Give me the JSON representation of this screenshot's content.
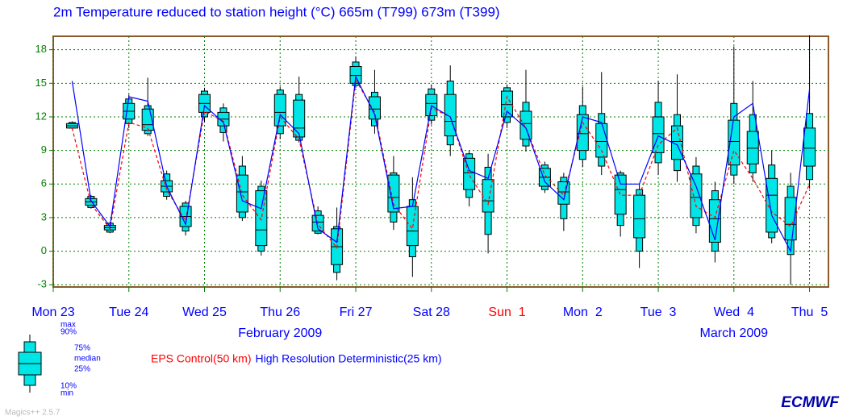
{
  "chart_data": {
    "type": "boxplot",
    "title": "2m Temperature reduced to station height (°C) 665m (T799) 673m (T399)",
    "xlim": [
      0,
      246
    ],
    "xticks": [
      {
        "value": 0,
        "label": "Mon 23"
      },
      {
        "value": 24,
        "label": "Tue 24"
      },
      {
        "value": 48,
        "label": "Wed 25"
      },
      {
        "value": 72,
        "label": "Thu 26"
      },
      {
        "value": 96,
        "label": "Fri 27"
      },
      {
        "value": 120,
        "label": "Sat 28"
      },
      {
        "value": 144,
        "label": "Sun  1",
        "color": "#ff0000"
      },
      {
        "value": 168,
        "label": "Mon  2"
      },
      {
        "value": 192,
        "label": "Tue  3"
      },
      {
        "value": 216,
        "label": "Wed  4"
      },
      {
        "value": 240,
        "label": "Thu  5"
      }
    ],
    "month_labels": [
      {
        "value": 72,
        "label": "February 2009"
      },
      {
        "value": 216,
        "label": "March 2009"
      }
    ],
    "ylim": [
      -3.2,
      19.2
    ],
    "yticks": [
      -3,
      0,
      3,
      6,
      9,
      12,
      15,
      18
    ],
    "grid": true,
    "box_color": "#00e5e5",
    "x": [
      6,
      12,
      18,
      24,
      30,
      36,
      42,
      48,
      54,
      60,
      66,
      72,
      78,
      84,
      90,
      96,
      102,
      108,
      114,
      120,
      126,
      132,
      138,
      144,
      150,
      156,
      162,
      168,
      174,
      180,
      186,
      192,
      198,
      204,
      210,
      216,
      222,
      228,
      234,
      240
    ],
    "boxes": {
      "min": [
        10.9,
        3.8,
        1.6,
        11,
        10.3,
        4.6,
        1.4,
        11.5,
        9.8,
        2.7,
        -0.4,
        10,
        9.7,
        1.5,
        -2.6,
        14.6,
        10.5,
        1.9,
        -2.3,
        11.3,
        8.5,
        4,
        -0.2,
        11,
        8.9,
        5.2,
        1.8,
        7.5,
        6.8,
        1.3,
        -1.5,
        6.8,
        6.2,
        1.6,
        -1,
        6,
        6.2,
        0.7,
        -3,
        5.6
      ],
      "p10": [
        11,
        3.9,
        1.7,
        11.4,
        10.5,
        4.9,
        1.8,
        12,
        10.6,
        3,
        0,
        10.5,
        9.9,
        1.6,
        -1.9,
        14.8,
        11.2,
        2.6,
        -0.5,
        11.7,
        9.5,
        4.8,
        1.5,
        11.5,
        9.4,
        5.5,
        2.9,
        8.2,
        7.6,
        2.3,
        0,
        7.9,
        7.2,
        2.3,
        0,
        6.8,
        7,
        1.2,
        -0.3,
        6.4
      ],
      "p25": [
        11,
        4.1,
        1.9,
        11.8,
        10.8,
        5.3,
        2.2,
        12.4,
        11.2,
        3.5,
        0.5,
        11.2,
        10.2,
        1.8,
        -1.2,
        15,
        11.8,
        3.5,
        0.5,
        12.1,
        10.3,
        5.5,
        3.5,
        12,
        10,
        5.8,
        4.2,
        9,
        8.4,
        3.3,
        1.2,
        8.8,
        8.2,
        3,
        0.8,
        7.7,
        7.8,
        1.7,
        1,
        7.6
      ],
      "median": [
        11.2,
        4.4,
        2.1,
        12.5,
        11.3,
        5.8,
        3.1,
        13.2,
        11.8,
        5.3,
        1.9,
        12.4,
        11,
        2.6,
        0.4,
        15.7,
        12.7,
        4.8,
        1.8,
        13.2,
        11.6,
        7,
        4.5,
        13.1,
        11.4,
        6.6,
        5.3,
        10.5,
        9.8,
        5.5,
        2.9,
        10.5,
        9.8,
        4.8,
        2.9,
        9.8,
        9.2,
        5,
        2.4,
        9.2
      ],
      "p75": [
        11.4,
        4.7,
        2.3,
        13.2,
        12.7,
        6.3,
        4,
        14,
        12.4,
        6.8,
        5.4,
        14,
        13.5,
        3.2,
        2,
        16.5,
        13.8,
        6.8,
        4,
        14,
        14,
        8.3,
        6.4,
        14.3,
        12.5,
        7.4,
        6.2,
        12.2,
        11.4,
        6.8,
        5,
        12,
        11.2,
        6.9,
        4.6,
        11.7,
        10.7,
        6.5,
        4.8,
        11
      ],
      "p90": [
        11.5,
        4.9,
        2.5,
        13.6,
        13,
        6.9,
        4.3,
        14.3,
        12.8,
        7.6,
        5.8,
        14.4,
        14,
        3.6,
        2.2,
        16.9,
        14.2,
        7,
        4.6,
        14.5,
        15.2,
        8.7,
        7.5,
        14.6,
        13.3,
        7.7,
        6.6,
        13,
        12.3,
        7,
        5.5,
        13.3,
        12.2,
        7.6,
        5.4,
        13.2,
        12.2,
        7.7,
        5.8,
        12.3
      ],
      "max": [
        11.6,
        5,
        2.6,
        14,
        15.5,
        7.2,
        4.5,
        14.6,
        13.2,
        8.5,
        6.3,
        14.7,
        15.6,
        4,
        3.9,
        17.4,
        16.2,
        8.5,
        6.6,
        14.9,
        16.6,
        9,
        8.7,
        14.9,
        16.2,
        8,
        7,
        14.7,
        16,
        7.2,
        6,
        15.2,
        15.8,
        8.4,
        6.2,
        18.3,
        15.2,
        9,
        7,
        19.3
      ]
    },
    "series": [
      {
        "name": "EPS Control(50 km)",
        "color": "#ff0000",
        "dashed": true,
        "values": [
          11,
          4.2,
          2,
          11.5,
          11,
          5.5,
          2.7,
          12.5,
          11.6,
          5,
          2.8,
          12,
          10,
          2.4,
          0.3,
          15.3,
          12.4,
          4.2,
          2,
          12.8,
          12,
          6.8,
          4.2,
          13.8,
          11,
          6.8,
          5,
          11.5,
          9,
          5,
          5,
          9.5,
          11,
          4,
          3,
          9,
          6.5,
          3.5,
          2.2,
          6
        ]
      },
      {
        "name": "High Resolution Deterministic(25 km)",
        "color": "#0000ff",
        "dashed": false,
        "values": [
          15.2,
          4.5,
          2.2,
          13.8,
          13.4,
          5.8,
          2.4,
          13,
          11.5,
          4.5,
          3.8,
          12.2,
          10.5,
          2,
          0.8,
          15.6,
          12.2,
          3.8,
          4,
          13,
          12,
          7.2,
          6.5,
          12.5,
          11,
          6.2,
          4.6,
          12,
          11.5,
          6,
          6,
          10.3,
          9.5,
          5.8,
          1,
          12,
          13.2,
          3.2,
          0,
          14.5
        ]
      }
    ],
    "box_key": [
      "max",
      "90%",
      "75%",
      "median",
      "25%",
      "10%",
      "min"
    ],
    "footer_left": "Magics++ 2.5.7",
    "footer_right": "ECMWF"
  }
}
